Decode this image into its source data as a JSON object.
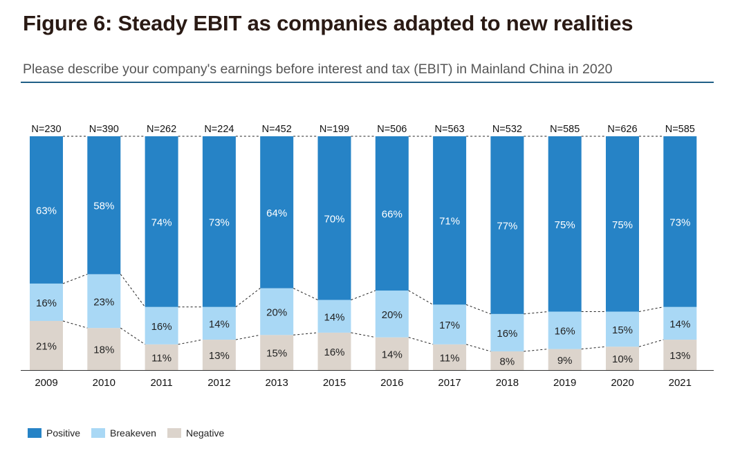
{
  "title": "Figure 6: Steady EBIT as companies adapted to new realities",
  "subtitle": "Please describe your company's earnings before interest and tax (EBIT) in Mainland China in 2020",
  "colors": {
    "positive": "#2683c6",
    "breakeven": "#a9d8f5",
    "negative": "#dcd4cc",
    "rule": "#1f5f86"
  },
  "chart_data": {
    "type": "bar",
    "stacked": true,
    "categories": [
      "2009",
      "2010",
      "2011",
      "2012",
      "2013",
      "2015",
      "2016",
      "2017",
      "2018",
      "2019",
      "2020",
      "2021"
    ],
    "n_labels": [
      "N=230",
      "N=390",
      "N=262",
      "N=224",
      "N=452",
      "N=199",
      "N=506",
      "N=563",
      "N=532",
      "N=585",
      "N=626",
      "N=585"
    ],
    "series": [
      {
        "name": "Negative",
        "values": [
          21,
          18,
          11,
          13,
          15,
          16,
          14,
          11,
          8,
          9,
          10,
          13
        ]
      },
      {
        "name": "Breakeven",
        "values": [
          16,
          23,
          16,
          14,
          20,
          14,
          20,
          17,
          16,
          16,
          15,
          14
        ]
      },
      {
        "name": "Positive",
        "values": [
          63,
          58,
          74,
          73,
          64,
          70,
          66,
          71,
          77,
          75,
          75,
          73
        ]
      }
    ],
    "value_suffix": "%",
    "ylim": [
      0,
      100
    ],
    "xlabel": "",
    "ylabel": "",
    "grid": false,
    "legend_position": "bottom-left",
    "legend": [
      "Positive",
      "Breakeven",
      "Negative"
    ]
  }
}
